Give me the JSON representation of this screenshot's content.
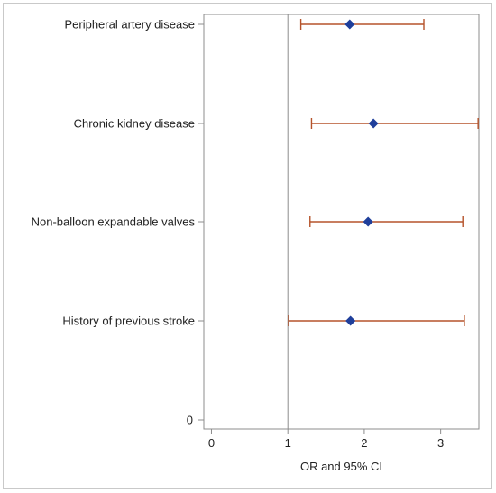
{
  "chart_data": {
    "type": "forest",
    "xlabel": "OR and 95% CI",
    "xlim": [
      -0.1,
      3.5
    ],
    "xticks": [
      0,
      1,
      2,
      3
    ],
    "ytick_zero_label": "0",
    "reference_line_x": 1,
    "categories": [
      "Peripheral artery disease",
      "Chronic kidney disease",
      "Non-balloon expandable valves",
      "History of previous stroke"
    ],
    "estimates": [
      1.81,
      2.12,
      2.05,
      1.82
    ],
    "ci_lower": [
      1.17,
      1.31,
      1.29,
      1.01
    ],
    "ci_upper": [
      2.78,
      3.49,
      3.29,
      3.31
    ],
    "grid": false,
    "legend": "none",
    "colors": {
      "marker": "#1f3f9b",
      "ci_line": "#b5532b",
      "reference_line": "#8c8c8c",
      "axis": "#8c8c8c"
    }
  }
}
